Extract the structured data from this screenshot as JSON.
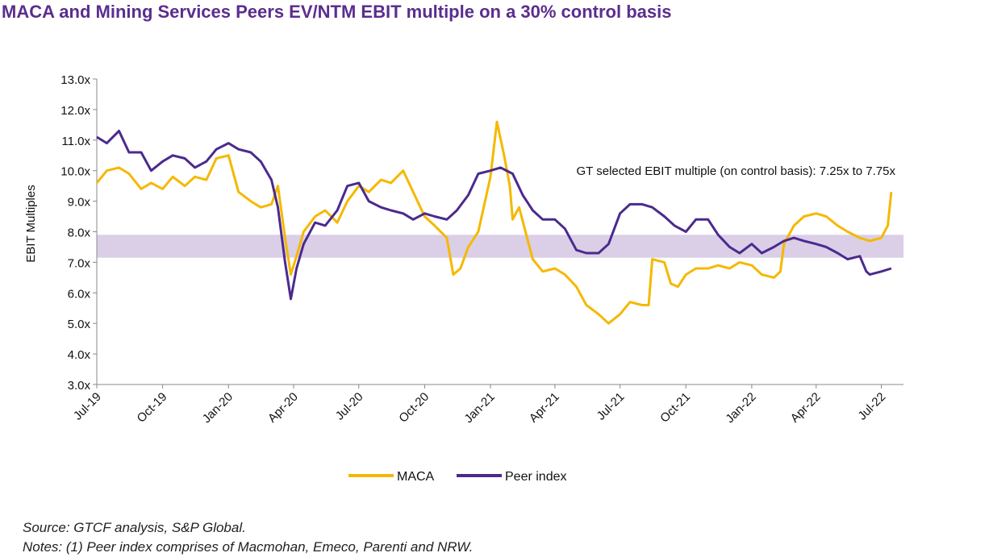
{
  "title": "MACA and Mining Services Peers EV/NTM EBIT multiple on a 30% control basis",
  "colors": {
    "maca": "#f5b800",
    "peer": "#4b2a8e",
    "band": "#d4c7e3",
    "title": "#5b2d8e"
  },
  "chart_data": {
    "type": "line",
    "ylabel": "EBIT Multiples",
    "ylim": [
      3.0,
      13.0
    ],
    "y_ticks": [
      "3.0x",
      "4.0x",
      "5.0x",
      "6.0x",
      "7.0x",
      "8.0x",
      "9.0x",
      "10.0x",
      "11.0x",
      "12.0x",
      "13.0x"
    ],
    "x_range": [
      "2019-07-01",
      "2022-08-01"
    ],
    "x_ticks": [
      {
        "label": "Jul-19",
        "date": "2019-07-01"
      },
      {
        "label": "Oct-19",
        "date": "2019-10-01"
      },
      {
        "label": "Jan-20",
        "date": "2020-01-01"
      },
      {
        "label": "Apr-20",
        "date": "2020-04-01"
      },
      {
        "label": "Jul-20",
        "date": "2020-07-01"
      },
      {
        "label": "Oct-20",
        "date": "2020-10-01"
      },
      {
        "label": "Jan-21",
        "date": "2021-01-01"
      },
      {
        "label": "Apr-21",
        "date": "2021-04-01"
      },
      {
        "label": "Jul-21",
        "date": "2021-07-01"
      },
      {
        "label": "Oct-21",
        "date": "2021-10-01"
      },
      {
        "label": "Jan-22",
        "date": "2022-01-01"
      },
      {
        "label": "Apr-22",
        "date": "2022-04-01"
      },
      {
        "label": "Jul-22",
        "date": "2022-07-01"
      }
    ],
    "band": {
      "low": 7.25,
      "high": 7.75,
      "label": "GT selected EBIT multiple (on control basis): 7.25x to 7.75x"
    },
    "legend_position": "bottom",
    "grid": false,
    "series": [
      {
        "name": "MACA",
        "points": [
          [
            "2019-07-01",
            9.6
          ],
          [
            "2019-07-15",
            10.0
          ],
          [
            "2019-08-01",
            10.1
          ],
          [
            "2019-08-15",
            9.9
          ],
          [
            "2019-09-01",
            9.4
          ],
          [
            "2019-09-15",
            9.6
          ],
          [
            "2019-10-01",
            9.4
          ],
          [
            "2019-10-15",
            9.8
          ],
          [
            "2019-11-01",
            9.5
          ],
          [
            "2019-11-15",
            9.8
          ],
          [
            "2019-12-01",
            9.7
          ],
          [
            "2019-12-15",
            10.4
          ],
          [
            "2020-01-01",
            10.5
          ],
          [
            "2020-01-15",
            9.3
          ],
          [
            "2020-02-01",
            9.0
          ],
          [
            "2020-02-15",
            8.8
          ],
          [
            "2020-03-01",
            8.9
          ],
          [
            "2020-03-10",
            9.5
          ],
          [
            "2020-03-20",
            7.8
          ],
          [
            "2020-03-28",
            6.6
          ],
          [
            "2020-04-05",
            7.2
          ],
          [
            "2020-04-15",
            8.0
          ],
          [
            "2020-05-01",
            8.5
          ],
          [
            "2020-05-15",
            8.7
          ],
          [
            "2020-06-01",
            8.3
          ],
          [
            "2020-06-15",
            9.0
          ],
          [
            "2020-07-01",
            9.5
          ],
          [
            "2020-07-15",
            9.3
          ],
          [
            "2020-08-01",
            9.7
          ],
          [
            "2020-08-15",
            9.6
          ],
          [
            "2020-09-01",
            10.0
          ],
          [
            "2020-09-15",
            9.3
          ],
          [
            "2020-10-01",
            8.5
          ],
          [
            "2020-10-15",
            8.2
          ],
          [
            "2020-11-01",
            7.8
          ],
          [
            "2020-11-10",
            6.6
          ],
          [
            "2020-11-20",
            6.8
          ],
          [
            "2020-12-01",
            7.5
          ],
          [
            "2020-12-15",
            8.0
          ],
          [
            "2021-01-01",
            9.8
          ],
          [
            "2021-01-10",
            11.6
          ],
          [
            "2021-01-20",
            10.5
          ],
          [
            "2021-01-28",
            9.5
          ],
          [
            "2021-02-01",
            8.4
          ],
          [
            "2021-02-10",
            8.8
          ],
          [
            "2021-02-20",
            7.9
          ],
          [
            "2021-03-01",
            7.1
          ],
          [
            "2021-03-15",
            6.7
          ],
          [
            "2021-04-01",
            6.8
          ],
          [
            "2021-04-15",
            6.6
          ],
          [
            "2021-05-01",
            6.2
          ],
          [
            "2021-05-15",
            5.6
          ],
          [
            "2021-06-01",
            5.3
          ],
          [
            "2021-06-15",
            5.0
          ],
          [
            "2021-07-01",
            5.3
          ],
          [
            "2021-07-15",
            5.7
          ],
          [
            "2021-08-01",
            5.6
          ],
          [
            "2021-08-10",
            5.6
          ],
          [
            "2021-08-15",
            7.1
          ],
          [
            "2021-09-01",
            7.0
          ],
          [
            "2021-09-10",
            6.3
          ],
          [
            "2021-09-20",
            6.2
          ],
          [
            "2021-10-01",
            6.6
          ],
          [
            "2021-10-15",
            6.8
          ],
          [
            "2021-11-01",
            6.8
          ],
          [
            "2021-11-15",
            6.9
          ],
          [
            "2021-12-01",
            6.8
          ],
          [
            "2021-12-15",
            7.0
          ],
          [
            "2022-01-01",
            6.9
          ],
          [
            "2022-01-15",
            6.6
          ],
          [
            "2022-02-01",
            6.5
          ],
          [
            "2022-02-10",
            6.7
          ],
          [
            "2022-02-15",
            7.6
          ],
          [
            "2022-03-01",
            8.2
          ],
          [
            "2022-03-15",
            8.5
          ],
          [
            "2022-04-01",
            8.6
          ],
          [
            "2022-04-15",
            8.5
          ],
          [
            "2022-05-01",
            8.2
          ],
          [
            "2022-05-15",
            8.0
          ],
          [
            "2022-06-01",
            7.8
          ],
          [
            "2022-06-15",
            7.7
          ],
          [
            "2022-07-01",
            7.8
          ],
          [
            "2022-07-10",
            8.2
          ],
          [
            "2022-07-15",
            9.3
          ]
        ]
      },
      {
        "name": "Peer index",
        "points": [
          [
            "2019-07-01",
            11.1
          ],
          [
            "2019-07-15",
            10.9
          ],
          [
            "2019-08-01",
            11.3
          ],
          [
            "2019-08-15",
            10.6
          ],
          [
            "2019-09-01",
            10.6
          ],
          [
            "2019-09-15",
            10.0
          ],
          [
            "2019-10-01",
            10.3
          ],
          [
            "2019-10-15",
            10.5
          ],
          [
            "2019-11-01",
            10.4
          ],
          [
            "2019-11-15",
            10.1
          ],
          [
            "2019-12-01",
            10.3
          ],
          [
            "2019-12-15",
            10.7
          ],
          [
            "2020-01-01",
            10.9
          ],
          [
            "2020-01-15",
            10.7
          ],
          [
            "2020-02-01",
            10.6
          ],
          [
            "2020-02-15",
            10.3
          ],
          [
            "2020-03-01",
            9.7
          ],
          [
            "2020-03-10",
            8.8
          ],
          [
            "2020-03-20",
            7.0
          ],
          [
            "2020-03-28",
            5.8
          ],
          [
            "2020-04-05",
            6.8
          ],
          [
            "2020-04-15",
            7.6
          ],
          [
            "2020-05-01",
            8.3
          ],
          [
            "2020-05-15",
            8.2
          ],
          [
            "2020-06-01",
            8.7
          ],
          [
            "2020-06-15",
            9.5
          ],
          [
            "2020-07-01",
            9.6
          ],
          [
            "2020-07-15",
            9.0
          ],
          [
            "2020-08-01",
            8.8
          ],
          [
            "2020-08-15",
            8.7
          ],
          [
            "2020-09-01",
            8.6
          ],
          [
            "2020-09-15",
            8.4
          ],
          [
            "2020-10-01",
            8.6
          ],
          [
            "2020-10-15",
            8.5
          ],
          [
            "2020-11-01",
            8.4
          ],
          [
            "2020-11-15",
            8.7
          ],
          [
            "2020-12-01",
            9.2
          ],
          [
            "2020-12-15",
            9.9
          ],
          [
            "2021-01-01",
            10.0
          ],
          [
            "2021-01-15",
            10.1
          ],
          [
            "2021-02-01",
            9.9
          ],
          [
            "2021-02-15",
            9.2
          ],
          [
            "2021-03-01",
            8.7
          ],
          [
            "2021-03-15",
            8.4
          ],
          [
            "2021-04-01",
            8.4
          ],
          [
            "2021-04-15",
            8.1
          ],
          [
            "2021-05-01",
            7.4
          ],
          [
            "2021-05-15",
            7.3
          ],
          [
            "2021-06-01",
            7.3
          ],
          [
            "2021-06-15",
            7.6
          ],
          [
            "2021-07-01",
            8.6
          ],
          [
            "2021-07-15",
            8.9
          ],
          [
            "2021-08-01",
            8.9
          ],
          [
            "2021-08-15",
            8.8
          ],
          [
            "2021-09-01",
            8.5
          ],
          [
            "2021-09-15",
            8.2
          ],
          [
            "2021-10-01",
            8.0
          ],
          [
            "2021-10-15",
            8.4
          ],
          [
            "2021-11-01",
            8.4
          ],
          [
            "2021-11-15",
            7.9
          ],
          [
            "2021-12-01",
            7.5
          ],
          [
            "2021-12-15",
            7.3
          ],
          [
            "2022-01-01",
            7.6
          ],
          [
            "2022-01-15",
            7.3
          ],
          [
            "2022-02-01",
            7.5
          ],
          [
            "2022-02-15",
            7.7
          ],
          [
            "2022-03-01",
            7.8
          ],
          [
            "2022-03-15",
            7.7
          ],
          [
            "2022-04-01",
            7.6
          ],
          [
            "2022-04-15",
            7.5
          ],
          [
            "2022-05-01",
            7.3
          ],
          [
            "2022-05-15",
            7.1
          ],
          [
            "2022-06-01",
            7.2
          ],
          [
            "2022-06-10",
            6.7
          ],
          [
            "2022-06-15",
            6.6
          ],
          [
            "2022-07-01",
            6.7
          ],
          [
            "2022-07-15",
            6.8
          ]
        ]
      }
    ]
  },
  "notes": {
    "source": "Source: GTCF analysis, S&P Global.",
    "note1": "Notes: (1) Peer index comprises of Macmohan, Emeco, Parenti and NRW."
  }
}
